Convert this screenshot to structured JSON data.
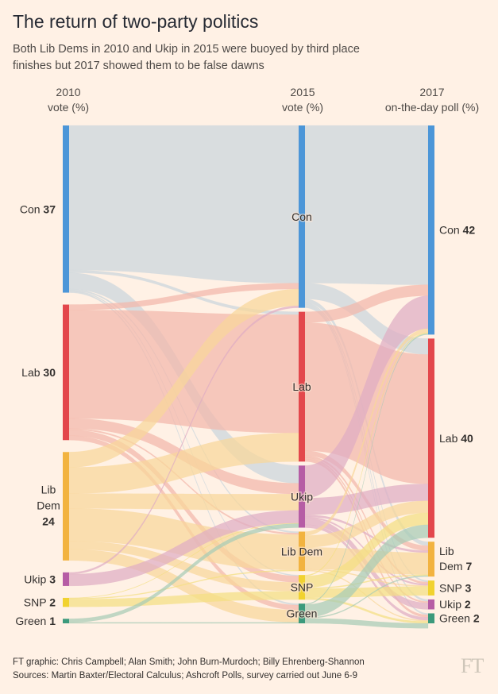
{
  "title": "The return of two-party politics",
  "subtitle": "Both Lib Dems in 2010 and Ukip in 2015 were buoyed by third place finishes but 2017 showed them to be false dawns",
  "columns": {
    "c2010": {
      "line1": "2010",
      "line2": "vote (%)"
    },
    "c2015": {
      "line1": "2015",
      "line2": "vote (%)"
    },
    "c2017": {
      "line1": "2017",
      "line2": "on-the-day poll (%)"
    }
  },
  "footer": {
    "credit": "FT graphic: Chris Campbell; Alan Smith; John Burn-Murdoch; Billy Ehrenberg-Shannon",
    "sources": "Sources: Martin Baxter/Electoral Calculus; Ashcroft Polls, survey carried out June 6-9"
  },
  "logo": "FT",
  "chart_data": {
    "type": "sankey",
    "columns": [
      "2010",
      "2015",
      "2017"
    ],
    "parties": {
      "Con": {
        "label": "Con",
        "color": "#4c96d8",
        "flow_color": "#cbd6dd"
      },
      "Lab": {
        "label": "Lab",
        "color": "#e3474c",
        "flow_color": "#f3b7aa"
      },
      "LibDem": {
        "label": "Lib Dem",
        "color": "#f2b340",
        "flow_color": "#f8d79a"
      },
      "Ukip": {
        "label": "Ukip",
        "color": "#b65da5",
        "flow_color": "#dfadc4"
      },
      "SNP": {
        "label": "SNP",
        "color": "#f1d230",
        "flow_color": "#f4df82"
      },
      "Green": {
        "label": "Green",
        "color": "#3c9a7c",
        "flow_color": "#a8ccb5"
      }
    },
    "nodes_2010": [
      {
        "party": "Con",
        "label": "Con",
        "value": 37
      },
      {
        "party": "Lab",
        "label": "Lab",
        "value": 30
      },
      {
        "party": "LibDem",
        "label": "Lib Dem",
        "value": 24
      },
      {
        "party": "Ukip",
        "label": "Ukip",
        "value": 3
      },
      {
        "party": "SNP",
        "label": "SNP",
        "value": 2
      },
      {
        "party": "Green",
        "label": "Green",
        "value": 1
      }
    ],
    "nodes_2015": [
      {
        "party": "Con",
        "label": "Con",
        "value": 37
      },
      {
        "party": "Lab",
        "label": "Lab",
        "value": 30.4
      },
      {
        "party": "Ukip",
        "label": "Ukip",
        "value": 12.6
      },
      {
        "party": "LibDem",
        "label": "Lib Dem",
        "value": 8
      },
      {
        "party": "SNP",
        "label": "SNP",
        "value": 5
      },
      {
        "party": "Green",
        "label": "Green",
        "value": 4
      }
    ],
    "nodes_2017": [
      {
        "party": "Con",
        "label": "Con",
        "value": 42
      },
      {
        "party": "Lab",
        "label": "Lab",
        "value": 40
      },
      {
        "party": "LibDem",
        "label": "Lib Dem",
        "value": 7
      },
      {
        "party": "SNP",
        "label": "SNP",
        "value": 3
      },
      {
        "party": "Ukip",
        "label": "Ukip",
        "value": 2
      },
      {
        "party": "Green",
        "label": "Green",
        "value": 2
      }
    ],
    "labels_2010": [
      {
        "party": "Con",
        "name": "Con",
        "value": "37"
      },
      {
        "party": "Lab",
        "name": "Lab",
        "value": "30"
      },
      {
        "party": "LibDem",
        "name": "Lib Dem",
        "value": "24"
      },
      {
        "party": "Ukip",
        "name": "Ukip",
        "value": "3"
      },
      {
        "party": "SNP",
        "name": "SNP",
        "value": "2"
      },
      {
        "party": "Green",
        "name": "Green",
        "value": "1"
      }
    ],
    "labels_2015": [
      {
        "party": "Con",
        "name": "Con"
      },
      {
        "party": "Lab",
        "name": "Lab"
      },
      {
        "party": "Ukip",
        "name": "Ukip"
      },
      {
        "party": "LibDem",
        "name": "Lib Dem"
      },
      {
        "party": "SNP",
        "name": "SNP"
      },
      {
        "party": "Green",
        "name": "Green"
      }
    ],
    "labels_2017": [
      {
        "party": "Con",
        "name": "Con",
        "value": "42"
      },
      {
        "party": "Lab",
        "name": "Lab",
        "value": "40"
      },
      {
        "party": "LibDem",
        "name": "Lib Dem",
        "value": "7"
      },
      {
        "party": "SNP",
        "name": "SNP",
        "value": "3"
      },
      {
        "party": "Ukip",
        "name": "Ukip",
        "value": "2"
      },
      {
        "party": "Green",
        "name": "Green",
        "value": "2"
      }
    ],
    "flows_2010_2015": [
      {
        "from": "Con",
        "to": "Con",
        "value": 32
      },
      {
        "from": "Con",
        "to": "Lab",
        "value": 0.6
      },
      {
        "from": "Con",
        "to": "Ukip",
        "value": 3.6
      },
      {
        "from": "Con",
        "to": "LibDem",
        "value": 0.3
      },
      {
        "from": "Con",
        "to": "SNP",
        "value": 0.2
      },
      {
        "from": "Con",
        "to": "Green",
        "value": 0.3
      },
      {
        "from": "Lab",
        "to": "Con",
        "value": 1.2
      },
      {
        "from": "Lab",
        "to": "Lab",
        "value": 24
      },
      {
        "from": "Lab",
        "to": "Ukip",
        "value": 2.2
      },
      {
        "from": "Lab",
        "to": "LibDem",
        "value": 0.3
      },
      {
        "from": "Lab",
        "to": "SNP",
        "value": 1.3
      },
      {
        "from": "Lab",
        "to": "Green",
        "value": 1.0
      },
      {
        "from": "LibDem",
        "to": "Con",
        "value": 3.4
      },
      {
        "from": "LibDem",
        "to": "Lab",
        "value": 5.8
      },
      {
        "from": "LibDem",
        "to": "Ukip",
        "value": 3.3
      },
      {
        "from": "LibDem",
        "to": "LibDem",
        "value": 7.2
      },
      {
        "from": "LibDem",
        "to": "SNP",
        "value": 1.8
      },
      {
        "from": "LibDem",
        "to": "Green",
        "value": 2.5
      },
      {
        "from": "Ukip",
        "to": "Con",
        "value": 0.4
      },
      {
        "from": "Ukip",
        "to": "Ukip",
        "value": 2.6
      },
      {
        "from": "SNP",
        "to": "SNP",
        "value": 1.7
      },
      {
        "from": "SNP",
        "to": "LibDem",
        "value": 0.2
      },
      {
        "from": "SNP",
        "to": "Ukip",
        "value": 0.1
      },
      {
        "from": "Green",
        "to": "Green",
        "value": 0.2
      },
      {
        "from": "Green",
        "to": "Ukip",
        "value": 0.8
      }
    ],
    "flows_2015_2017": [
      {
        "from": "Con",
        "to": "Con",
        "value": 32
      },
      {
        "from": "Con",
        "to": "Lab",
        "value": 3.2
      },
      {
        "from": "Con",
        "to": "LibDem",
        "value": 0.8
      },
      {
        "from": "Con",
        "to": "SNP",
        "value": 0.3
      },
      {
        "from": "Con",
        "to": "Ukip",
        "value": 0.4
      },
      {
        "from": "Con",
        "to": "Green",
        "value": 0.3
      },
      {
        "from": "Lab",
        "to": "Con",
        "value": 2.2
      },
      {
        "from": "Lab",
        "to": "Lab",
        "value": 26
      },
      {
        "from": "Lab",
        "to": "LibDem",
        "value": 1.0
      },
      {
        "from": "Lab",
        "to": "SNP",
        "value": 0.4
      },
      {
        "from": "Lab",
        "to": "Ukip",
        "value": 0.3
      },
      {
        "from": "Lab",
        "to": "Green",
        "value": 0.5
      },
      {
        "from": "Ukip",
        "to": "Con",
        "value": 6.6
      },
      {
        "from": "Ukip",
        "to": "Lab",
        "value": 3.4
      },
      {
        "from": "Ukip",
        "to": "LibDem",
        "value": 0.4
      },
      {
        "from": "Ukip",
        "to": "SNP",
        "value": 0.3
      },
      {
        "from": "Ukip",
        "to": "Ukip",
        "value": 1.3
      },
      {
        "from": "Ukip",
        "to": "Green",
        "value": 0.6
      },
      {
        "from": "LibDem",
        "to": "Con",
        "value": 0.8
      },
      {
        "from": "LibDem",
        "to": "Lab",
        "value": 2.4
      },
      {
        "from": "LibDem",
        "to": "LibDem",
        "value": 4.4
      },
      {
        "from": "LibDem",
        "to": "SNP",
        "value": 0.2
      },
      {
        "from": "LibDem",
        "to": "Green",
        "value": 0.2
      },
      {
        "from": "SNP",
        "to": "Con",
        "value": 0.2
      },
      {
        "from": "SNP",
        "to": "Lab",
        "value": 2.4
      },
      {
        "from": "SNP",
        "to": "SNP",
        "value": 1.8
      },
      {
        "from": "SNP",
        "to": "LibDem",
        "value": 0.2
      },
      {
        "from": "SNP",
        "to": "Green",
        "value": 0.4
      },
      {
        "from": "Green",
        "to": "Con",
        "value": 0.2
      },
      {
        "from": "Green",
        "to": "Lab",
        "value": 2.6
      },
      {
        "from": "Green",
        "to": "LibDem",
        "value": 0.2
      },
      {
        "from": "Green",
        "to": "Green",
        "value": 1.0
      }
    ]
  }
}
